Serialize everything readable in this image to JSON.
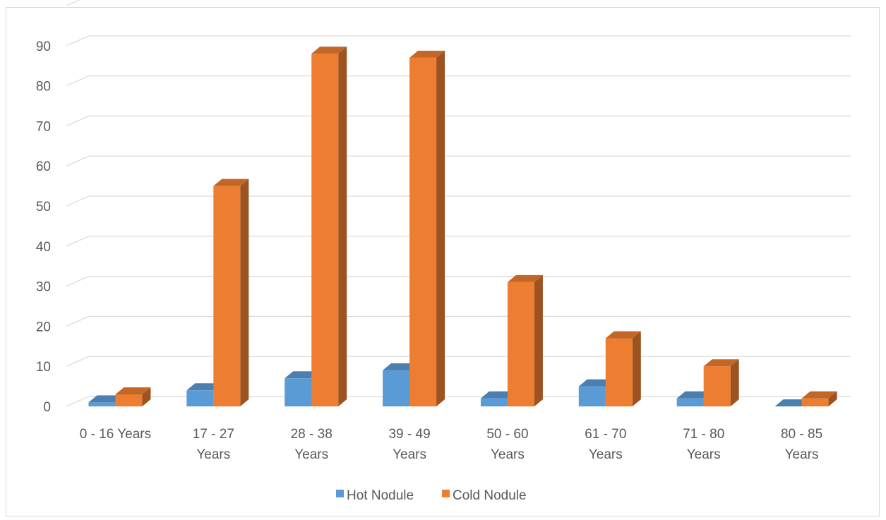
{
  "chart_data": {
    "type": "bar",
    "title": "",
    "xlabel": "",
    "ylabel": "",
    "ylim": [
      0,
      90
    ],
    "yticks": [
      0,
      10,
      20,
      30,
      40,
      50,
      60,
      70,
      80,
      90
    ],
    "grid": true,
    "legend_position": "bottom",
    "categories": [
      [
        "0 - 16 Years"
      ],
      [
        "17 - 27",
        "Years"
      ],
      [
        "28 - 38",
        "Years"
      ],
      [
        "39 - 49",
        "Years"
      ],
      [
        "50 - 60",
        "Years"
      ],
      [
        "61 - 70",
        "Years"
      ],
      [
        "71 - 80",
        "Years"
      ],
      [
        "80 - 85",
        "Years"
      ]
    ],
    "series": [
      {
        "name": "Hot Nodule",
        "color": "#5b9bd5",
        "values": [
          1,
          4,
          7,
          9,
          2,
          5,
          2,
          0
        ]
      },
      {
        "name": "Cold Nodule",
        "color": "#ed7d31",
        "values": [
          3,
          55,
          88,
          87,
          31,
          17,
          10,
          2
        ]
      }
    ]
  }
}
